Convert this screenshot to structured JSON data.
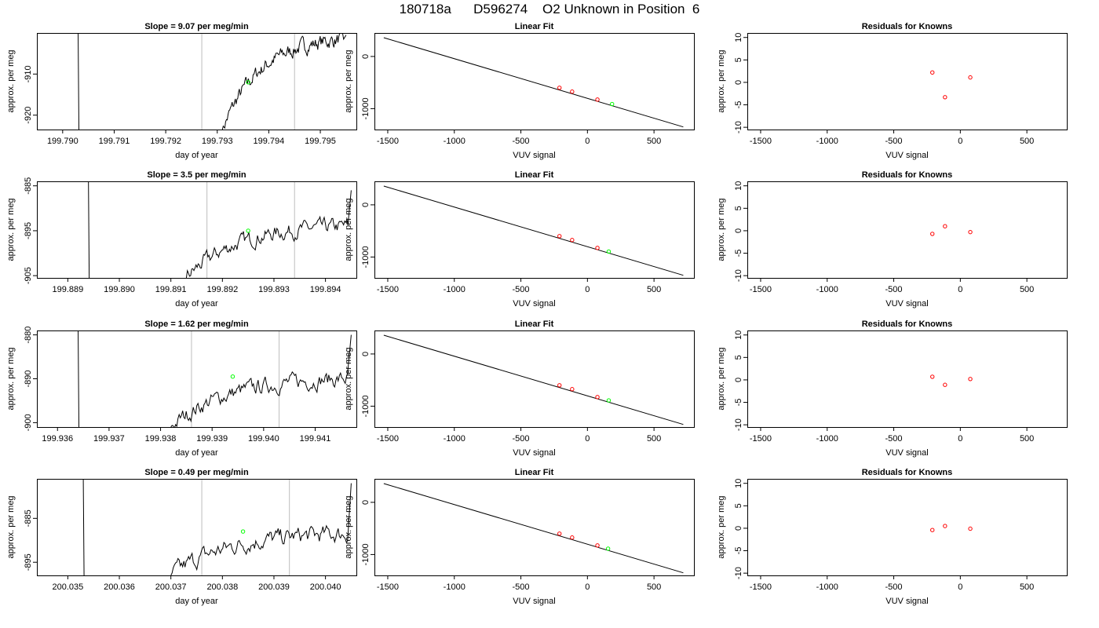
{
  "page_title": "180718a      D596274    O2 Unknown in Position  6",
  "colors": {
    "trace": "#000000",
    "marker_lines": "#bebebe",
    "unknown_point": "#00ff00",
    "known_point": "#ff0000",
    "fit_line": "#000000"
  },
  "chart_data": [
    {
      "type": "line",
      "row": 1,
      "panel": "trace",
      "title": "Slope =  9.07  per meg/min",
      "xlabel": "day of year",
      "ylabel": "approx. per meg",
      "xlim": [
        199.7895,
        199.7957
      ],
      "ylim": [
        -923.5,
        -900
      ],
      "xticks": [
        199.79,
        199.791,
        199.792,
        199.793,
        199.794,
        199.795
      ],
      "xtick_labels": [
        "199.790",
        "199.791",
        "199.792",
        "199.793",
        "199.794",
        "199.795"
      ],
      "yticks": [
        -920,
        -910
      ],
      "ytick_labels": [
        "-920",
        "-910"
      ],
      "vlines": [
        199.7927,
        199.7945
      ],
      "spike_x": 199.7903,
      "trace_start": [
        199.7931,
        -923.5
      ],
      "trace_end": [
        199.7955,
        -900.5
      ],
      "trace_plateau": -901.5,
      "trace_noise": 1.3,
      "unknown_point": [
        199.7936,
        -912
      ]
    },
    {
      "type": "scatter",
      "row": 1,
      "panel": "fit",
      "title": "Linear Fit",
      "xlabel": "VUV signal",
      "ylabel": "approx. per meg",
      "xlim": [
        -1600,
        800
      ],
      "ylim": [
        -1400,
        450
      ],
      "xticks": [
        -1500,
        -1000,
        -500,
        0,
        500
      ],
      "xtick_labels": [
        "-1500",
        "-1000",
        "-500",
        "0",
        "500"
      ],
      "yticks": [
        -1000,
        0
      ],
      "ytick_labels": [
        "-1000",
        "0"
      ],
      "fit_line": [
        [
          -1530,
          360
        ],
        [
          720,
          -1350
        ]
      ],
      "known_points": [
        [
          -210,
          -600
        ],
        [
          -115,
          -674
        ],
        [
          75,
          -826
        ]
      ],
      "unknown_point": [
        [
          185,
          -912
        ]
      ]
    },
    {
      "type": "scatter",
      "row": 1,
      "panel": "residuals",
      "title": "Residuals for Knowns",
      "xlabel": "VUV signal",
      "ylabel": "approx. per meg",
      "xlim": [
        -1600,
        800
      ],
      "ylim": [
        -10.5,
        11
      ],
      "xticks": [
        -1500,
        -1000,
        -500,
        0,
        500
      ],
      "xtick_labels": [
        "-1500",
        "-1000",
        "-500",
        "0",
        "500"
      ],
      "yticks": [
        -10,
        -5,
        0,
        5,
        10
      ],
      "ytick_labels": [
        "-10",
        "-5",
        "0",
        "5",
        "10"
      ],
      "points": [
        [
          -210,
          2.2
        ],
        [
          -115,
          -3.3
        ],
        [
          75,
          1.1
        ]
      ]
    },
    {
      "type": "line",
      "row": 2,
      "panel": "trace",
      "title": "Slope =  3.5  per meg/min",
      "xlabel": "day of year",
      "ylabel": "approx. per meg",
      "xlim": [
        199.8884,
        199.8946
      ],
      "ylim": [
        -905.5,
        -884
      ],
      "xticks": [
        199.889,
        199.89,
        199.891,
        199.892,
        199.893,
        199.894
      ],
      "xtick_labels": [
        "199.889",
        "199.890",
        "199.891",
        "199.892",
        "199.893",
        "199.894"
      ],
      "yticks": [
        -905,
        -895,
        -885
      ],
      "ytick_labels": [
        "-905",
        "-895",
        "-885"
      ],
      "vlines": [
        199.8917,
        199.8934
      ],
      "spike_x": 199.8894,
      "trace_start": [
        199.8913,
        -905.5
      ],
      "trace_end": [
        199.8945,
        -886
      ],
      "trace_plateau": -894,
      "trace_noise": 1.2,
      "unknown_point": [
        199.8925,
        -895
      ]
    },
    {
      "type": "scatter",
      "row": 2,
      "panel": "fit",
      "title": "Linear Fit",
      "xlabel": "VUV signal",
      "ylabel": "approx. per meg",
      "xlim": [
        -1600,
        800
      ],
      "ylim": [
        -1400,
        450
      ],
      "xticks": [
        -1500,
        -1000,
        -500,
        0,
        500
      ],
      "xtick_labels": [
        "-1500",
        "-1000",
        "-500",
        "0",
        "500"
      ],
      "yticks": [
        -1000,
        0
      ],
      "ytick_labels": [
        "-1000",
        "0"
      ],
      "fit_line": [
        [
          -1530,
          360
        ],
        [
          720,
          -1350
        ]
      ],
      "known_points": [
        [
          -210,
          -600
        ],
        [
          -115,
          -674
        ],
        [
          75,
          -826
        ]
      ],
      "unknown_point": [
        [
          160,
          -895
        ]
      ]
    },
    {
      "type": "scatter",
      "row": 2,
      "panel": "residuals",
      "title": "Residuals for Knowns",
      "xlabel": "VUV signal",
      "ylabel": "approx. per meg",
      "xlim": [
        -1600,
        800
      ],
      "ylim": [
        -10.5,
        11
      ],
      "xticks": [
        -1500,
        -1000,
        -500,
        0,
        500
      ],
      "xtick_labels": [
        "-1500",
        "-1000",
        "-500",
        "0",
        "500"
      ],
      "yticks": [
        -10,
        -5,
        0,
        5,
        10
      ],
      "ytick_labels": [
        "-10",
        "-5",
        "0",
        "5",
        "10"
      ],
      "points": [
        [
          -210,
          -0.7
        ],
        [
          -115,
          1.0
        ],
        [
          75,
          -0.3
        ]
      ]
    },
    {
      "type": "line",
      "row": 3,
      "panel": "trace",
      "title": "Slope =  1.62  per meg/min",
      "xlabel": "day of year",
      "ylabel": "approx. per meg",
      "xlim": [
        199.9356,
        199.9418
      ],
      "ylim": [
        -901,
        -879
      ],
      "xticks": [
        199.936,
        199.937,
        199.938,
        199.939,
        199.94,
        199.941
      ],
      "xtick_labels": [
        "199.936",
        "199.937",
        "199.938",
        "199.939",
        "199.940",
        "199.941"
      ],
      "yticks": [
        -900,
        -890,
        -880
      ],
      "ytick_labels": [
        "-900",
        "-890",
        "-880"
      ],
      "vlines": [
        199.9386,
        199.9403
      ],
      "spike_x": 199.9364,
      "trace_start": [
        199.9382,
        -901
      ],
      "trace_end": [
        199.9417,
        -880
      ],
      "trace_plateau": -890,
      "trace_noise": 1.3,
      "unknown_point": [
        199.9394,
        -889.5
      ]
    },
    {
      "type": "scatter",
      "row": 3,
      "panel": "fit",
      "title": "Linear Fit",
      "xlabel": "VUV signal",
      "ylabel": "approx. per meg",
      "xlim": [
        -1600,
        800
      ],
      "ylim": [
        -1400,
        450
      ],
      "xticks": [
        -1500,
        -1000,
        -500,
        0,
        500
      ],
      "xtick_labels": [
        "-1500",
        "-1000",
        "-500",
        "0",
        "500"
      ],
      "yticks": [
        -1000,
        0
      ],
      "ytick_labels": [
        "-1000",
        "0"
      ],
      "fit_line": [
        [
          -1530,
          360
        ],
        [
          720,
          -1350
        ]
      ],
      "known_points": [
        [
          -210,
          -600
        ],
        [
          -115,
          -674
        ],
        [
          75,
          -826
        ]
      ],
      "unknown_point": [
        [
          160,
          -890
        ]
      ]
    },
    {
      "type": "scatter",
      "row": 3,
      "panel": "residuals",
      "title": "Residuals for Knowns",
      "xlabel": "VUV signal",
      "ylabel": "approx. per meg",
      "xlim": [
        -1600,
        800
      ],
      "ylim": [
        -10.5,
        11
      ],
      "xticks": [
        -1500,
        -1000,
        -500,
        0,
        500
      ],
      "xtick_labels": [
        "-1500",
        "-1000",
        "-500",
        "0",
        "500"
      ],
      "yticks": [
        -10,
        -5,
        0,
        5,
        10
      ],
      "ytick_labels": [
        "-10",
        "-5",
        "0",
        "5",
        "10"
      ],
      "points": [
        [
          -210,
          0.7
        ],
        [
          -115,
          -1.1
        ],
        [
          75,
          0.2
        ]
      ]
    },
    {
      "type": "line",
      "row": 4,
      "panel": "trace",
      "title": "Slope =  0.49  per meg/min",
      "xlabel": "day of year",
      "ylabel": "approx. per meg",
      "xlim": [
        200.0344,
        200.0406
      ],
      "ylim": [
        -898,
        -876
      ],
      "xticks": [
        200.035,
        200.036,
        200.037,
        200.038,
        200.039,
        200.04
      ],
      "xtick_labels": [
        "200.035",
        "200.036",
        "200.037",
        "200.038",
        "200.039",
        "200.040"
      ],
      "yticks": [
        -895,
        -885
      ],
      "ytick_labels": [
        "-895",
        "-885"
      ],
      "vlines": [
        200.0376,
        200.0393
      ],
      "spike_x": 200.0353,
      "trace_start": [
        200.037,
        -898
      ],
      "trace_end": [
        200.0405,
        -877
      ],
      "trace_plateau": -888.5,
      "trace_noise": 1.4,
      "unknown_point": [
        200.0384,
        -888
      ]
    },
    {
      "type": "scatter",
      "row": 4,
      "panel": "fit",
      "title": "Linear Fit",
      "xlabel": "VUV signal",
      "ylabel": "approx. per meg",
      "xlim": [
        -1600,
        800
      ],
      "ylim": [
        -1400,
        450
      ],
      "xticks": [
        -1500,
        -1000,
        -500,
        0,
        500
      ],
      "xtick_labels": [
        "-1500",
        "-1000",
        "-500",
        "0",
        "500"
      ],
      "yticks": [
        -1000,
        0
      ],
      "ytick_labels": [
        "-1000",
        "0"
      ],
      "fit_line": [
        [
          -1530,
          360
        ],
        [
          720,
          -1350
        ]
      ],
      "known_points": [
        [
          -210,
          -600
        ],
        [
          -115,
          -674
        ],
        [
          75,
          -826
        ]
      ],
      "unknown_point": [
        [
          155,
          -888
        ]
      ]
    },
    {
      "type": "scatter",
      "row": 4,
      "panel": "residuals",
      "title": "Residuals for Knowns",
      "xlabel": "VUV signal",
      "ylabel": "approx. per meg",
      "xlim": [
        -1600,
        800
      ],
      "ylim": [
        -10.5,
        11
      ],
      "xticks": [
        -1500,
        -1000,
        -500,
        0,
        500
      ],
      "xtick_labels": [
        "-1500",
        "-1000",
        "-500",
        "0",
        "500"
      ],
      "yticks": [
        -10,
        -5,
        0,
        5,
        10
      ],
      "ytick_labels": [
        "-10",
        "-5",
        "0",
        "5",
        "10"
      ],
      "points": [
        [
          -210,
          -0.4
        ],
        [
          -115,
          0.5
        ],
        [
          75,
          -0.1
        ]
      ]
    }
  ]
}
